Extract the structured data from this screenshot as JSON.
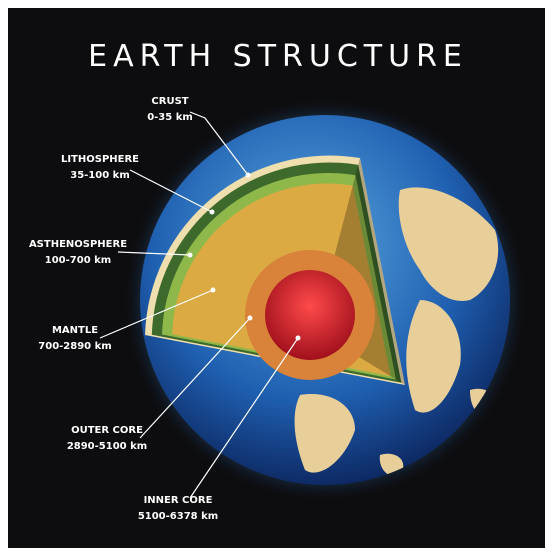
{
  "header": {
    "title": "EARTH STRUCTURE"
  },
  "layers": [
    {
      "name": "CRUST",
      "range": "0-35 km"
    },
    {
      "name": "LITHOSPHERE",
      "range": "35-100 km"
    },
    {
      "name": "ASTHENOSPHERE",
      "range": "100-700 km"
    },
    {
      "name": "MANTLE",
      "range": "700-2890 km"
    },
    {
      "name": "OUTER CORE",
      "range": "2890-5100 km"
    },
    {
      "name": "INNER CORE",
      "range": "5100-6378 km"
    }
  ]
}
